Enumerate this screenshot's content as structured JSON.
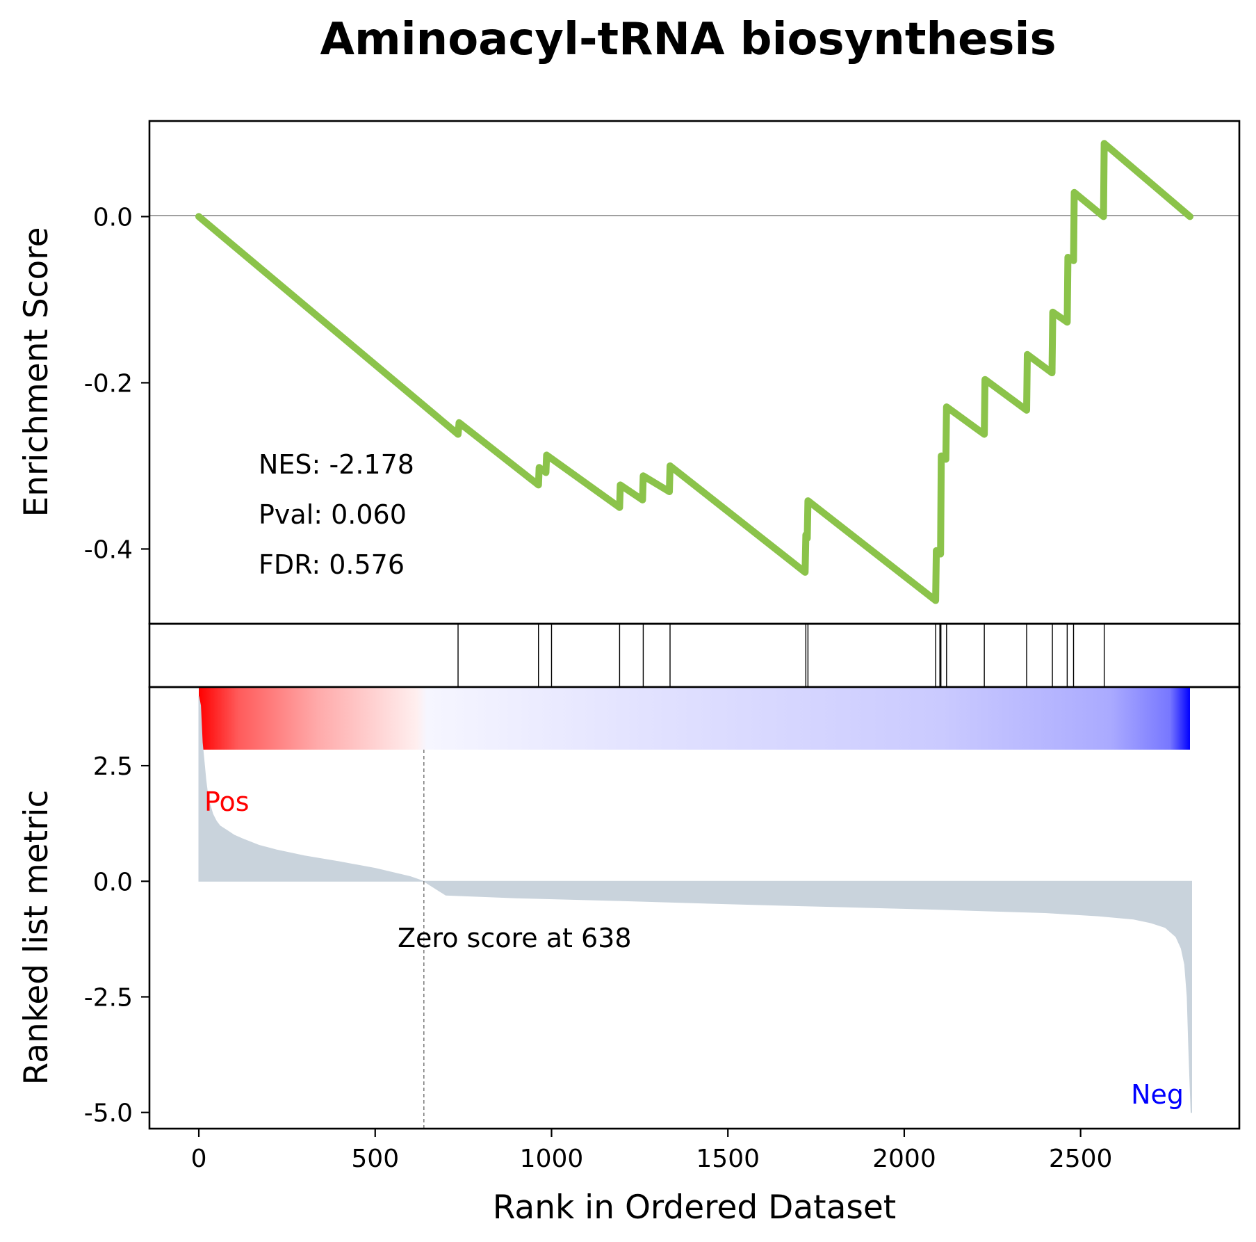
{
  "chart_data": {
    "type": "line",
    "title": "Aminoacyl-tRNA biosynthesis",
    "xlabel": "Rank in Ordered Dataset",
    "xlim": [
      -140,
      2950
    ],
    "xticks": [
      0,
      500,
      1000,
      1500,
      2000,
      2500
    ],
    "enrichment_panel": {
      "ylabel": "Enrichment Score",
      "ylim": [
        -0.49,
        0.115
      ],
      "yticks": [
        0.0,
        -0.2,
        -0.4
      ],
      "ytick_labels": [
        "0.0",
        "-0.2",
        "-0.4"
      ],
      "line_color": "#8bc34a",
      "zero_line": true,
      "series": [
        {
          "x": [
            0,
            735,
            738,
            963,
            965,
            984,
            986,
            1193,
            1195,
            1258,
            1260,
            1334,
            1336,
            1719,
            1721,
            1725,
            1727,
            2089,
            2091,
            2103,
            2105,
            2118,
            2120,
            2227,
            2229,
            2347,
            2349,
            2419,
            2421,
            2462,
            2464,
            2480,
            2482,
            2565,
            2567,
            2810
          ],
          "y": [
            0.0,
            -0.262,
            -0.248,
            -0.323,
            -0.302,
            -0.308,
            -0.287,
            -0.35,
            -0.323,
            -0.341,
            -0.312,
            -0.331,
            -0.3,
            -0.428,
            -0.383,
            -0.387,
            -0.342,
            -0.462,
            -0.402,
            -0.406,
            -0.288,
            -0.292,
            -0.229,
            -0.262,
            -0.196,
            -0.233,
            -0.166,
            -0.188,
            -0.115,
            -0.127,
            -0.049,
            -0.053,
            0.029,
            0.0,
            0.088,
            0.0
          ]
        }
      ],
      "annotations": {
        "nes": "NES: -2.178",
        "pval": "Pval: 0.060",
        "fdr": "FDR: 0.576"
      }
    },
    "hit_ranks": [
      735,
      963,
      1000,
      1193,
      1260,
      1336,
      1721,
      1727,
      2089,
      2101,
      2104,
      2120,
      2227,
      2347,
      2420,
      2462,
      2480,
      2567
    ],
    "metric_panel": {
      "ylabel": "Ranked list metric",
      "ylim": [
        -5.35,
        4.2
      ],
      "yticks": [
        2.5,
        0.0,
        -2.5,
        -5.0
      ],
      "ytick_labels": [
        "2.5",
        "0.0",
        "-2.5",
        "-5.0"
      ],
      "fill_color": "#c9d3dc",
      "n_genes": 2815,
      "x": [
        0,
        5,
        10,
        15,
        20,
        25,
        30,
        40,
        50,
        60,
        80,
        100,
        130,
        170,
        220,
        300,
        400,
        500,
        600,
        638,
        700,
        900,
        1200,
        1500,
        1800,
        2100,
        2400,
        2550,
        2650,
        2700,
        2740,
        2770,
        2785,
        2795,
        2802,
        2806,
        2810,
        2813,
        2815
      ],
      "y": [
        4.0,
        3.8,
        3.0,
        2.6,
        2.2,
        1.9,
        1.7,
        1.45,
        1.3,
        1.2,
        1.1,
        1.0,
        0.9,
        0.78,
        0.68,
        0.55,
        0.42,
        0.28,
        0.1,
        0.0,
        -0.3,
        -0.36,
        -0.42,
        -0.49,
        -0.55,
        -0.61,
        -0.68,
        -0.75,
        -0.82,
        -0.9,
        -1.0,
        -1.2,
        -1.45,
        -1.8,
        -2.5,
        -3.5,
        -4.4,
        -5.0,
        -5.0
      ],
      "zero_cross_rank": 638,
      "zero_cross_label": "Zero score at 638",
      "pos_label": "Pos",
      "neg_label": "Neg",
      "pos_color": "#ff0000",
      "neg_color": "#0000ff"
    },
    "gradient_bar": {
      "colormap": "bwr",
      "from_color": "#ff0000",
      "mid_color": "#ffffff",
      "to_color": "#0000ff"
    }
  }
}
